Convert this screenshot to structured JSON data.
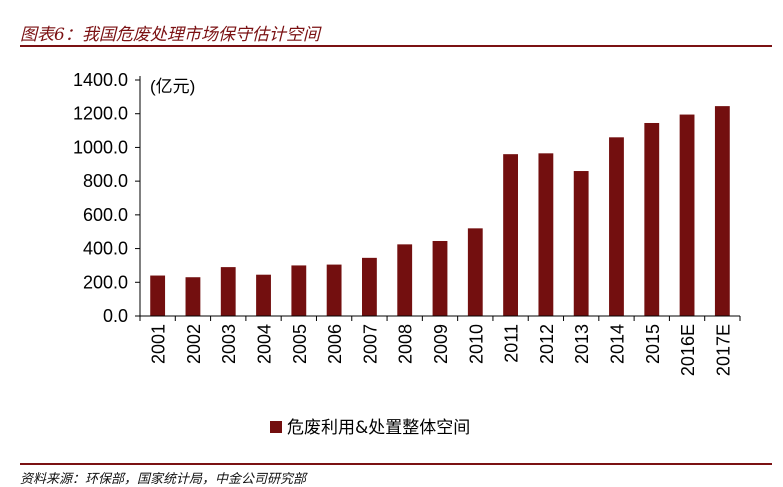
{
  "figure_title": "图表6：我国危废处理市场保守估计空间",
  "source_note": "资料来源：环保部，国家统计局，中金公司研究部",
  "colors": {
    "accent": "#7b1113",
    "bar": "#730f0f"
  },
  "chart_data": {
    "type": "bar",
    "unit_label": "(亿元)",
    "categories": [
      "2001",
      "2002",
      "2003",
      "2004",
      "2005",
      "2006",
      "2007",
      "2008",
      "2009",
      "2010",
      "2011",
      "2012",
      "2013",
      "2014",
      "2015",
      "2016E",
      "2017E"
    ],
    "series": [
      {
        "name": "危废利用&处置整体空间",
        "values": [
          240,
          230,
          290,
          245,
          300,
          305,
          345,
          425,
          445,
          520,
          960,
          965,
          860,
          1060,
          1145,
          1195,
          1245
        ]
      }
    ],
    "yticks": [
      "0.0",
      "200.0",
      "400.0",
      "600.0",
      "800.0",
      "1000.0",
      "1200.0",
      "1400.0"
    ],
    "ylim": [
      0,
      1400
    ],
    "grid": false,
    "legend_position": "bottom-center"
  }
}
